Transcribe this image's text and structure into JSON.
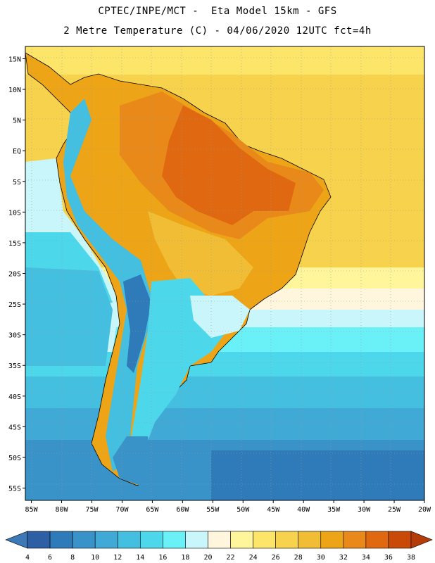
{
  "header": {
    "line1": "CPTEC/INPE/MCT -  Eta Model 15km - GFS",
    "line2": "2 Metre Temperature (C) - 04/06/2020 12UTC fct=4h"
  },
  "axes": {
    "lat_labels": [
      "15N",
      "10N",
      "5N",
      "EQ",
      "5S",
      "10S",
      "15S",
      "20S",
      "25S",
      "30S",
      "35S",
      "40S",
      "45S",
      "50S",
      "55S"
    ],
    "lon_labels": [
      "85W",
      "80W",
      "75W",
      "70W",
      "65W",
      "60W",
      "55W",
      "50W",
      "45W",
      "40W",
      "35W",
      "30W",
      "25W",
      "20W"
    ],
    "lat_range": [
      17,
      -57
    ],
    "lon_range": [
      -86,
      -20
    ]
  },
  "legend": {
    "values": [
      "4",
      "6",
      "8",
      "10",
      "12",
      "14",
      "16",
      "18",
      "20",
      "22",
      "24",
      "26",
      "28",
      "30",
      "32",
      "34",
      "36",
      "38"
    ],
    "colors": [
      "#2c5fa3",
      "#2f7ab9",
      "#3a93c8",
      "#41a9d6",
      "#44bfe0",
      "#4dd7ea",
      "#6af0f7",
      "#c9f6fb",
      "#fff6dd",
      "#fff59a",
      "#fde56a",
      "#f7d24c",
      "#f0bd34",
      "#eda416",
      "#e8891a",
      "#e06810",
      "#c84a06"
    ],
    "low_color": "#3d79b6",
    "high_color": "#b43c08"
  }
}
